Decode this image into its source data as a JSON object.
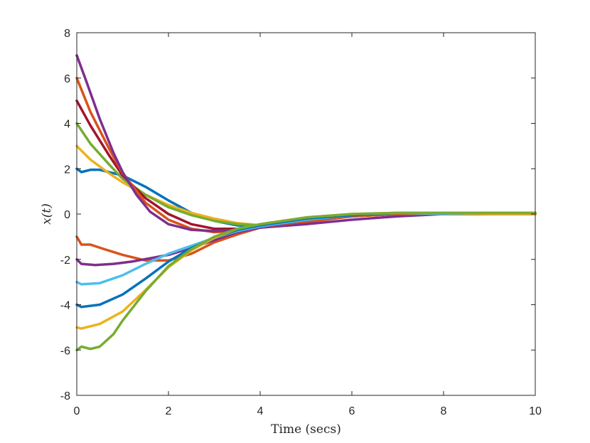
{
  "chart_data": {
    "type": "line",
    "title": "",
    "xlabel": "Time (secs)",
    "ylabel": "x(t)",
    "xlim": [
      0,
      10
    ],
    "ylim": [
      -8,
      8
    ],
    "xticks": [
      0,
      2,
      4,
      6,
      8,
      10
    ],
    "yticks": [
      -8,
      -6,
      -4,
      -2,
      0,
      2,
      4,
      6,
      8
    ],
    "xtick_labels": [
      "0",
      "2",
      "4",
      "6",
      "8",
      "10"
    ],
    "ytick_labels": [
      "-8",
      "-6",
      "-4",
      "-2",
      "0",
      "2",
      "4",
      "6",
      "8"
    ],
    "grid": false,
    "legend": "none",
    "series": [
      {
        "color": "#0072BD",
        "x": [
          0,
          0.1,
          0.3,
          0.5,
          1.0,
          1.5,
          2.0,
          2.5,
          3.0,
          3.5,
          4.0,
          5.0,
          6.0,
          7.0,
          8.0,
          9.0
        ],
        "y": [
          2.0,
          1.85,
          1.95,
          1.95,
          1.7,
          1.2,
          0.6,
          0.05,
          -0.3,
          -0.5,
          -0.55,
          -0.35,
          -0.05,
          0.05,
          0.05,
          0.05
        ]
      },
      {
        "color": "#EDB120",
        "x": [
          0,
          0.3,
          0.7,
          1.0,
          1.5,
          2.0,
          2.5,
          3.0,
          3.5,
          4.0,
          5.0,
          6.0,
          7.0,
          8.0,
          9.0,
          10.0
        ],
        "y": [
          3.0,
          2.4,
          1.8,
          1.4,
          0.85,
          0.4,
          0.05,
          -0.2,
          -0.4,
          -0.5,
          -0.3,
          -0.05,
          0.05,
          0.05,
          0.05,
          0.05
        ]
      },
      {
        "color": "#77AC30",
        "x": [
          0,
          0.3,
          0.7,
          1.0,
          1.5,
          2.0,
          2.5,
          3.0,
          3.5,
          4.0,
          5.0,
          6.0,
          7.0,
          8.0,
          9.0,
          10.0
        ],
        "y": [
          4.0,
          3.1,
          2.2,
          1.55,
          0.85,
          0.3,
          -0.05,
          -0.3,
          -0.45,
          -0.5,
          -0.25,
          -0.05,
          0.05,
          0.05,
          0.05,
          0.05
        ]
      },
      {
        "color": "#A2142F",
        "x": [
          0,
          0.3,
          0.7,
          1.0,
          1.5,
          2.0,
          2.5,
          3.0,
          3.5,
          4.0,
          5.0,
          6.0,
          7.0,
          8.0,
          9.0,
          10.0
        ],
        "y": [
          5.0,
          3.9,
          2.6,
          1.7,
          0.7,
          0.0,
          -0.45,
          -0.65,
          -0.65,
          -0.6,
          -0.35,
          -0.1,
          0.0,
          0.0,
          0.0,
          0.0
        ]
      },
      {
        "color": "#D95319",
        "x": [
          0,
          0.3,
          0.7,
          1.0,
          1.5,
          2.0,
          2.5,
          3.0,
          3.5,
          4.0,
          5.0,
          6.0,
          7.0,
          8.0,
          9.0,
          10.0
        ],
        "y": [
          6.0,
          4.5,
          2.9,
          1.8,
          0.5,
          -0.25,
          -0.65,
          -0.8,
          -0.75,
          -0.6,
          -0.35,
          -0.1,
          0.0,
          0.0,
          0.0,
          0.0
        ]
      },
      {
        "color": "#7E2F8E",
        "x": [
          0,
          0.2,
          0.5,
          0.8,
          1.0,
          1.3,
          1.6,
          2.0,
          2.5,
          3.0,
          3.5,
          4.0,
          5.0,
          6.0,
          7.0,
          8.0,
          9.0,
          10.0
        ],
        "y": [
          7.0,
          5.9,
          4.2,
          2.7,
          1.85,
          0.85,
          0.1,
          -0.45,
          -0.7,
          -0.75,
          -0.7,
          -0.6,
          -0.45,
          -0.25,
          -0.1,
          0.0,
          0.0,
          0.0
        ]
      },
      {
        "color": "#D95319",
        "x": [
          0,
          0.1,
          0.3,
          0.6,
          1.0,
          1.5,
          2.0,
          2.5,
          3.0,
          3.5,
          4.0,
          5.0,
          6.0,
          7.0,
          8.0,
          9.0,
          10.0
        ],
        "y": [
          -1.0,
          -1.35,
          -1.35,
          -1.55,
          -1.8,
          -2.05,
          -2.05,
          -1.75,
          -1.25,
          -0.9,
          -0.6,
          -0.3,
          -0.1,
          0.0,
          0.0,
          0.0,
          0.0
        ]
      },
      {
        "color": "#7E2F8E",
        "x": [
          0,
          0.1,
          0.4,
          0.8,
          1.2,
          1.6,
          2.0,
          2.5,
          3.0,
          3.5,
          4.0,
          5.0,
          6.0,
          7.0,
          8.0,
          9.0,
          10.0
        ],
        "y": [
          -2.0,
          -2.2,
          -2.25,
          -2.2,
          -2.1,
          -1.95,
          -1.8,
          -1.5,
          -1.15,
          -0.8,
          -0.6,
          -0.25,
          -0.05,
          0.05,
          0.0,
          0.0,
          0.0
        ]
      },
      {
        "color": "#4DBEEE",
        "x": [
          0,
          0.1,
          0.5,
          1.0,
          1.5,
          2.0,
          2.5,
          3.0,
          3.5,
          4.0,
          5.0,
          6.0,
          7.0,
          8.0,
          9.0,
          10.0
        ],
        "y": [
          -3.0,
          -3.1,
          -3.05,
          -2.7,
          -2.2,
          -1.75,
          -1.4,
          -1.05,
          -0.75,
          -0.55,
          -0.25,
          -0.05,
          0.05,
          0.0,
          0.0,
          0.0
        ]
      },
      {
        "color": "#0072BD",
        "x": [
          0,
          0.1,
          0.5,
          1.0,
          1.5,
          2.0,
          2.5,
          3.0,
          3.5,
          4.0,
          5.0,
          6.0,
          7.0,
          8.0,
          9.0,
          10.0
        ],
        "y": [
          -4.0,
          -4.1,
          -4.0,
          -3.55,
          -2.85,
          -2.1,
          -1.5,
          -1.05,
          -0.7,
          -0.5,
          -0.2,
          -0.05,
          0.05,
          0.05,
          0.0,
          0.0
        ]
      },
      {
        "color": "#EDB120",
        "x": [
          0,
          0.1,
          0.5,
          1.0,
          1.5,
          2.0,
          2.5,
          3.0,
          3.5,
          4.0,
          5.0,
          6.0,
          7.0,
          8.0,
          9.0,
          10.0
        ],
        "y": [
          -5.0,
          -5.05,
          -4.85,
          -4.3,
          -3.35,
          -2.35,
          -1.6,
          -1.05,
          -0.65,
          -0.45,
          -0.15,
          0.0,
          0.05,
          0.05,
          0.0,
          0.0
        ]
      },
      {
        "color": "#77AC30",
        "x": [
          0,
          0.1,
          0.3,
          0.5,
          0.8,
          1.0,
          1.5,
          2.0,
          2.5,
          3.0,
          3.5,
          4.0,
          5.0,
          6.0,
          7.0,
          8.0,
          9.0,
          10.0
        ],
        "y": [
          -6.0,
          -5.85,
          -5.95,
          -5.85,
          -5.3,
          -4.7,
          -3.4,
          -2.3,
          -1.55,
          -1.0,
          -0.65,
          -0.45,
          -0.15,
          0.0,
          0.05,
          0.05,
          0.05,
          0.05
        ]
      }
    ]
  }
}
